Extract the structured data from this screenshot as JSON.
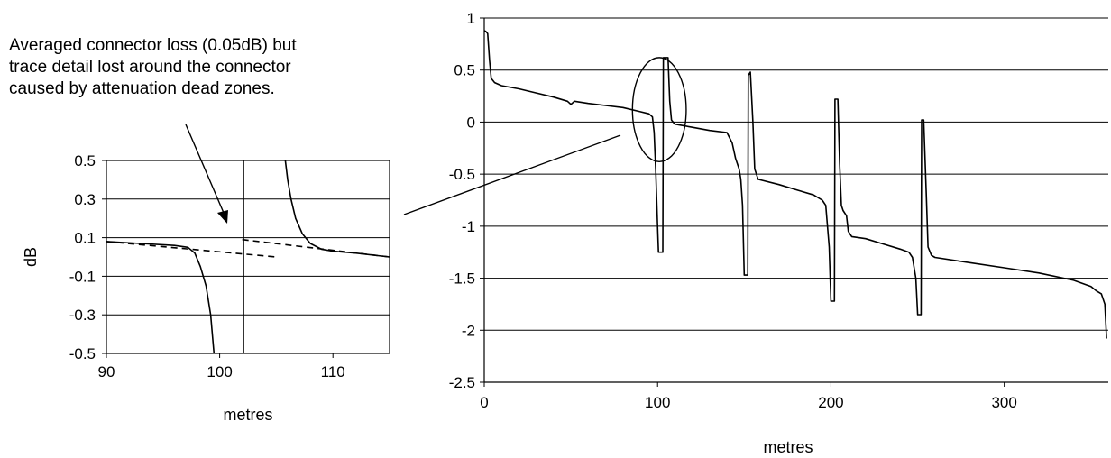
{
  "annotation": {
    "lines": [
      "Averaged connector loss (0.05dB) but",
      "trace detail lost around the connector",
      "caused by attenuation dead zones."
    ]
  },
  "chart_data": [
    {
      "id": "zoom",
      "type": "line",
      "xlabel": "metres",
      "ylabel": "dB",
      "xlim": [
        90,
        115
      ],
      "ylim": [
        -0.5,
        0.5
      ],
      "xticks": [
        90,
        100,
        110
      ],
      "yticks": [
        0.5,
        0.3,
        0.1,
        -0.1,
        -0.3,
        -0.5
      ],
      "grid": "horizontal",
      "series": [
        {
          "style": "solid",
          "points": [
            [
              90,
              0.08
            ],
            [
              93,
              0.07
            ],
            [
              96,
              0.06
            ],
            [
              97.2,
              0.05
            ],
            [
              97.8,
              0.02
            ],
            [
              98.3,
              -0.05
            ],
            [
              98.8,
              -0.15
            ],
            [
              99.2,
              -0.3
            ],
            [
              99.5,
              -0.5
            ]
          ]
        },
        {
          "style": "solid",
          "points": [
            [
              102.1,
              -0.5
            ],
            [
              102.1,
              0.5
            ]
          ]
        },
        {
          "style": "solid",
          "points": [
            [
              105.8,
              0.5
            ],
            [
              106.0,
              0.4
            ],
            [
              106.3,
              0.3
            ],
            [
              106.7,
              0.2
            ],
            [
              107.3,
              0.12
            ],
            [
              108,
              0.07
            ],
            [
              109,
              0.04
            ],
            [
              110,
              0.03
            ],
            [
              112,
              0.02
            ],
            [
              115,
              0.0
            ]
          ]
        },
        {
          "style": "dashed",
          "points": [
            [
              90,
              0.08
            ],
            [
              105,
              0.0
            ]
          ]
        },
        {
          "style": "dashed",
          "points": [
            [
              102,
              0.09
            ],
            [
              115,
              0.0
            ]
          ]
        }
      ]
    },
    {
      "id": "full",
      "type": "line",
      "xlabel": "metres",
      "ylabel": "",
      "xlim": [
        0,
        360
      ],
      "ylim": [
        -2.5,
        1
      ],
      "xticks": [
        0,
        100,
        200,
        300
      ],
      "yticks": [
        1,
        0.5,
        0,
        -0.5,
        -1,
        -1.5,
        -2,
        -2.5
      ],
      "grid": "horizontal",
      "series": [
        {
          "style": "solid",
          "points": [
            [
              0,
              0.88
            ],
            [
              1,
              0.87
            ],
            [
              2,
              0.85
            ],
            [
              3,
              0.6
            ],
            [
              4,
              0.42
            ],
            [
              6,
              0.38
            ],
            [
              10,
              0.35
            ],
            [
              20,
              0.32
            ],
            [
              30,
              0.28
            ],
            [
              40,
              0.24
            ],
            [
              48,
              0.2
            ],
            [
              50,
              0.17
            ],
            [
              52,
              0.2
            ],
            [
              60,
              0.18
            ],
            [
              70,
              0.16
            ],
            [
              80,
              0.14
            ],
            [
              90,
              0.1
            ],
            [
              95,
              0.08
            ],
            [
              97,
              0.05
            ],
            [
              98,
              -0.1
            ],
            [
              99,
              -0.5
            ],
            [
              100,
              -1.0
            ],
            [
              100.5,
              -1.25
            ],
            [
              103,
              -1.25
            ],
            [
              103.3,
              0.62
            ],
            [
              106,
              0.62
            ],
            [
              107,
              0.2
            ],
            [
              108,
              0.02
            ],
            [
              110,
              -0.02
            ],
            [
              120,
              -0.05
            ],
            [
              130,
              -0.08
            ],
            [
              140,
              -0.1
            ],
            [
              143,
              -0.2
            ],
            [
              145,
              -0.35
            ],
            [
              147,
              -0.45
            ],
            [
              148,
              -0.55
            ],
            [
              149,
              -0.8
            ],
            [
              150,
              -1.47
            ],
            [
              152,
              -1.47
            ],
            [
              152.3,
              0.45
            ],
            [
              153.5,
              0.48
            ],
            [
              155,
              0.0
            ],
            [
              156,
              -0.45
            ],
            [
              158,
              -0.55
            ],
            [
              170,
              -0.6
            ],
            [
              180,
              -0.65
            ],
            [
              190,
              -0.7
            ],
            [
              195,
              -0.75
            ],
            [
              197,
              -0.8
            ],
            [
              199,
              -1.2
            ],
            [
              200,
              -1.72
            ],
            [
              202,
              -1.72
            ],
            [
              202.3,
              0.22
            ],
            [
              204,
              0.22
            ],
            [
              205,
              -0.4
            ],
            [
              206,
              -0.8
            ],
            [
              207,
              -0.85
            ],
            [
              209,
              -0.9
            ],
            [
              210,
              -1.05
            ],
            [
              212,
              -1.1
            ],
            [
              220,
              -1.12
            ],
            [
              230,
              -1.17
            ],
            [
              240,
              -1.22
            ],
            [
              245,
              -1.25
            ],
            [
              247,
              -1.3
            ],
            [
              249,
              -1.5
            ],
            [
              250,
              -1.85
            ],
            [
              252,
              -1.85
            ],
            [
              252.3,
              0.02
            ],
            [
              253.5,
              0.02
            ],
            [
              255,
              -0.7
            ],
            [
              256,
              -1.2
            ],
            [
              258,
              -1.28
            ],
            [
              260,
              -1.3
            ],
            [
              280,
              -1.35
            ],
            [
              300,
              -1.4
            ],
            [
              320,
              -1.45
            ],
            [
              340,
              -1.52
            ],
            [
              350,
              -1.58
            ],
            [
              353,
              -1.62
            ],
            [
              356,
              -1.65
            ],
            [
              358,
              -1.75
            ],
            [
              359,
              -2.08
            ]
          ]
        }
      ],
      "highlight_circle": {
        "x": 101,
        "y": 0.12,
        "rx": 15.5,
        "ry": 0.5
      }
    }
  ]
}
